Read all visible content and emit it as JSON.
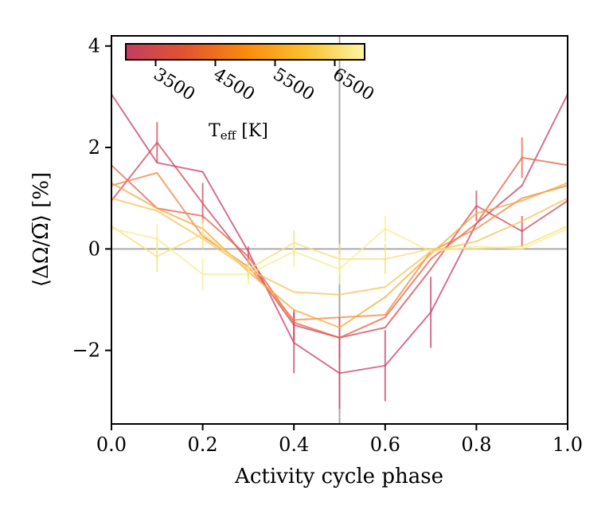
{
  "chart_data": {
    "type": "line",
    "xlabel": "Activity cycle phase",
    "ylabel": "⟨ΔΩ/Ω̅⟩ [%]",
    "xlim": [
      0.0,
      1.0
    ],
    "ylim": [
      -3.45,
      4.2
    ],
    "x_ticks": [
      0.0,
      0.2,
      0.4,
      0.6,
      0.8,
      1.0
    ],
    "x_tick_labels": [
      "0.0",
      "0.2",
      "0.4",
      "0.6",
      "0.8",
      "1.0"
    ],
    "y_ticks": [
      -2,
      0,
      2,
      4
    ],
    "y_tick_labels": [
      "−2",
      "0",
      "2",
      "4"
    ],
    "reference_lines": {
      "horizontal": 0,
      "vertical": 0.5
    },
    "colorbar": {
      "label_main": "T",
      "label_sub": "eff",
      "label_unit": " [K]",
      "ticks": [
        "3500",
        "4500",
        "5500",
        "6500"
      ],
      "placement": "top-left",
      "colors": [
        "#c33e60",
        "#e2542f",
        "#f98a0e",
        "#fbc02f",
        "#fcf6a1"
      ]
    },
    "x": [
      0.0,
      0.1,
      0.2,
      0.3,
      0.4,
      0.5,
      0.6,
      0.7,
      0.8,
      0.9,
      1.0
    ],
    "series": [
      {
        "name": "3500 K",
        "color": "#c7416b",
        "values": [
          3.05,
          1.7,
          1.52,
          -0.05,
          -1.85,
          -2.45,
          -2.3,
          -1.25,
          0.5,
          1.25,
          3.05
        ],
        "errors": [
          0,
          0,
          0,
          0,
          0.6,
          0.7,
          0.7,
          0.7,
          0,
          0,
          0
        ]
      },
      {
        "name": "3800 K",
        "color": "#d24a5a",
        "values": [
          0.95,
          2.1,
          0.9,
          -0.25,
          -1.5,
          -1.75,
          -1.55,
          -0.4,
          0.85,
          0.35,
          0.95
        ],
        "errors": [
          0,
          0.4,
          0.4,
          0.3,
          0.3,
          0.4,
          0,
          0,
          0.3,
          0.3,
          0
        ]
      },
      {
        "name": "4300 K",
        "color": "#e86045",
        "values": [
          1.65,
          0.8,
          0.65,
          -0.15,
          -1.45,
          -1.75,
          -1.35,
          -0.2,
          0.5,
          1.8,
          1.65
        ],
        "errors": [
          0,
          0,
          0,
          0,
          0,
          0,
          0,
          0,
          0,
          0.4,
          0
        ]
      },
      {
        "name": "4700 K",
        "color": "#f1843f",
        "values": [
          1.25,
          1.5,
          0.25,
          -0.35,
          -1.4,
          -1.35,
          -1.3,
          -0.05,
          0.4,
          1.0,
          1.25
        ],
        "errors": [
          0,
          0,
          0,
          0,
          0,
          0,
          0,
          0,
          0,
          0,
          0
        ]
      },
      {
        "name": "5200 K",
        "color": "#f7a83c",
        "values": [
          1.3,
          0.8,
          0.4,
          -0.45,
          -1.2,
          -1.55,
          -0.95,
          -0.1,
          0.7,
          0.95,
          1.3
        ],
        "errors": [
          0,
          0,
          0,
          0,
          0,
          0,
          0,
          0,
          0,
          0,
          0
        ]
      },
      {
        "name": "5700 K",
        "color": "#fbc255",
        "values": [
          1.0,
          0.75,
          0.2,
          -0.4,
          -0.85,
          -0.9,
          -0.75,
          -0.05,
          0.15,
          0.55,
          1.0
        ],
        "errors": [
          0,
          0,
          0,
          0,
          0,
          0,
          0,
          0,
          0,
          0,
          0
        ]
      },
      {
        "name": "6200 K",
        "color": "#f7df78",
        "values": [
          0.45,
          -0.15,
          0.3,
          -0.4,
          0.12,
          -0.2,
          -0.2,
          0.0,
          0.0,
          0.05,
          0.45
        ],
        "errors": [
          0,
          0.3,
          0.3,
          0.2,
          0.25,
          0.3,
          0.3,
          0,
          0,
          0,
          0
        ]
      },
      {
        "name": "6600 K",
        "color": "#f6ee90",
        "values": [
          0.4,
          0.2,
          -0.5,
          -0.5,
          -0.05,
          -0.4,
          0.4,
          -0.05,
          0.05,
          0.0,
          0.4
        ],
        "errors": [
          0,
          0.3,
          0.3,
          0.2,
          0.3,
          0.3,
          0.25,
          0,
          0,
          0,
          0
        ]
      }
    ]
  }
}
